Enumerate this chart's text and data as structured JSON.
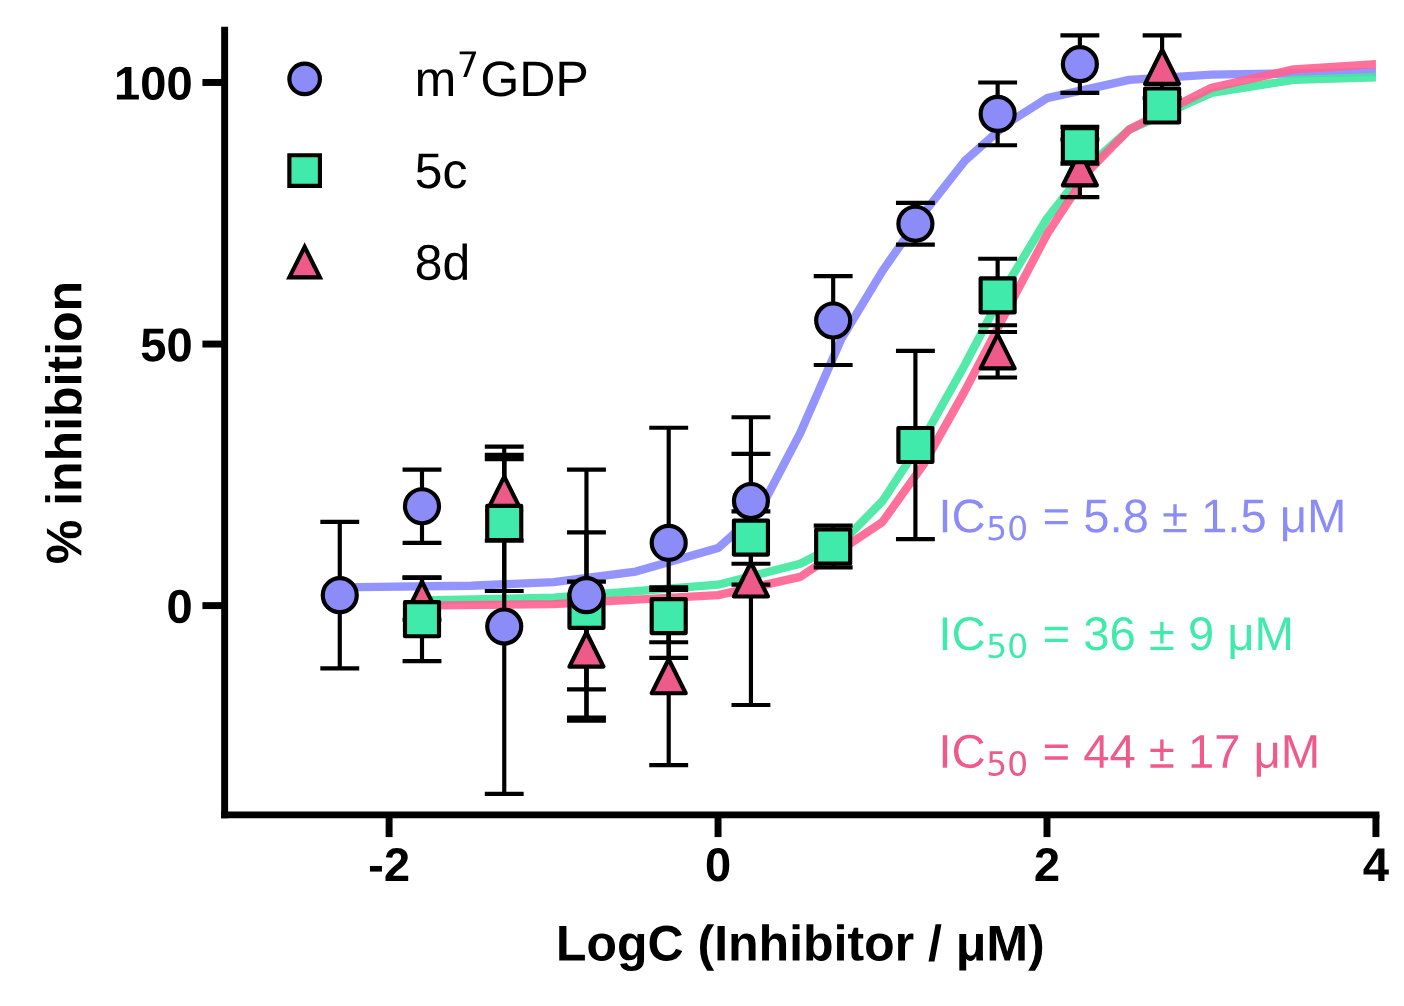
{
  "chart_data": {
    "type": "scatter",
    "xlabel": "LogC (Inhibitor / μM)",
    "ylabel": "% inhibition",
    "xlim": [
      -3,
      4
    ],
    "ylim": [
      -40,
      110
    ],
    "xticks": [
      -2,
      0,
      2,
      4
    ],
    "yticks": [
      0,
      50,
      100
    ],
    "grid": false,
    "legend": "top left",
    "series": [
      {
        "name": "m$^{7}$GDP",
        "marker": "circle",
        "color": "#8c8cf8",
        "x": [
          -2.3,
          -1.8,
          -1.3,
          -0.8,
          -0.3,
          0.2,
          0.7,
          1.2,
          1.7,
          2.2
        ],
        "values": [
          2,
          19,
          -4,
          2,
          12,
          20,
          54.5,
          73,
          94,
          103.5
        ],
        "errors": [
          14,
          7,
          32,
          24,
          22,
          16,
          8.5,
          4,
          6,
          5.5
        ]
      },
      {
        "name": "5c",
        "marker": "square",
        "color": "#40eaaa",
        "x": [
          -1.8,
          -1.3,
          -0.8,
          -0.3,
          0.2,
          0.7,
          1.2,
          1.7,
          2.2,
          2.7
        ],
        "values": [
          -2.6,
          15.8,
          -1,
          -2,
          13,
          11.3,
          30.7,
          59.3,
          88,
          95.6
        ],
        "errors": [
          8,
          13,
          15,
          5,
          5,
          4,
          18,
          7,
          3.5,
          null
        ]
      },
      {
        "name": "8d",
        "marker": "triangle",
        "color": "#ee5a8a",
        "x": [
          -1.8,
          -1.3,
          -0.8,
          -0.3,
          0.2,
          1.7,
          2.2,
          2.7
        ],
        "values": [
          1.3,
          21.4,
          -8.4,
          -13.5,
          5,
          48.6,
          83.6,
          103
        ],
        "errors": [
          4,
          9,
          13,
          17,
          24,
          5,
          5.5,
          6
        ]
      },
      {
        "type": "line",
        "color": "#8888ff",
        "x": [
          -2.3,
          -1.5,
          -1,
          -0.5,
          0,
          0.25,
          0.5,
          0.75,
          1,
          1.2,
          1.5,
          1.75,
          2,
          2.5,
          3,
          4
        ],
        "values": [
          3.5,
          3.8,
          4.5,
          6.5,
          11,
          18,
          33,
          51,
          64,
          73,
          85,
          92,
          97,
          100.5,
          101.5,
          102
        ]
      },
      {
        "type": "line",
        "color": "#40e8a0",
        "x": [
          -1.8,
          -1,
          0,
          0.5,
          0.75,
          1,
          1.25,
          1.5,
          1.75,
          2,
          2.25,
          2.5,
          3,
          3.5,
          4
        ],
        "values": [
          1,
          1.5,
          4,
          8,
          12,
          20,
          32,
          46,
          61,
          74,
          84,
          91,
          98,
          100.5,
          101
        ]
      },
      {
        "type": "line",
        "color": "#ff6090",
        "x": [
          -1.8,
          -1,
          0,
          0.5,
          1,
          1.25,
          1.5,
          1.75,
          2,
          2.25,
          2.5,
          3,
          3.5,
          4
        ],
        "values": [
          0,
          0.3,
          2,
          5.5,
          16,
          27,
          41,
          56,
          71,
          83,
          91,
          99,
          102.5,
          103.5
        ]
      }
    ],
    "annotations": [
      "IC$_{50}$ = 5.8 ± 1.5 μM",
      "IC$_{50}$ = 36 ± 9 μM",
      "IC$_{50}$ = 44 ± 17 μM"
    ]
  }
}
